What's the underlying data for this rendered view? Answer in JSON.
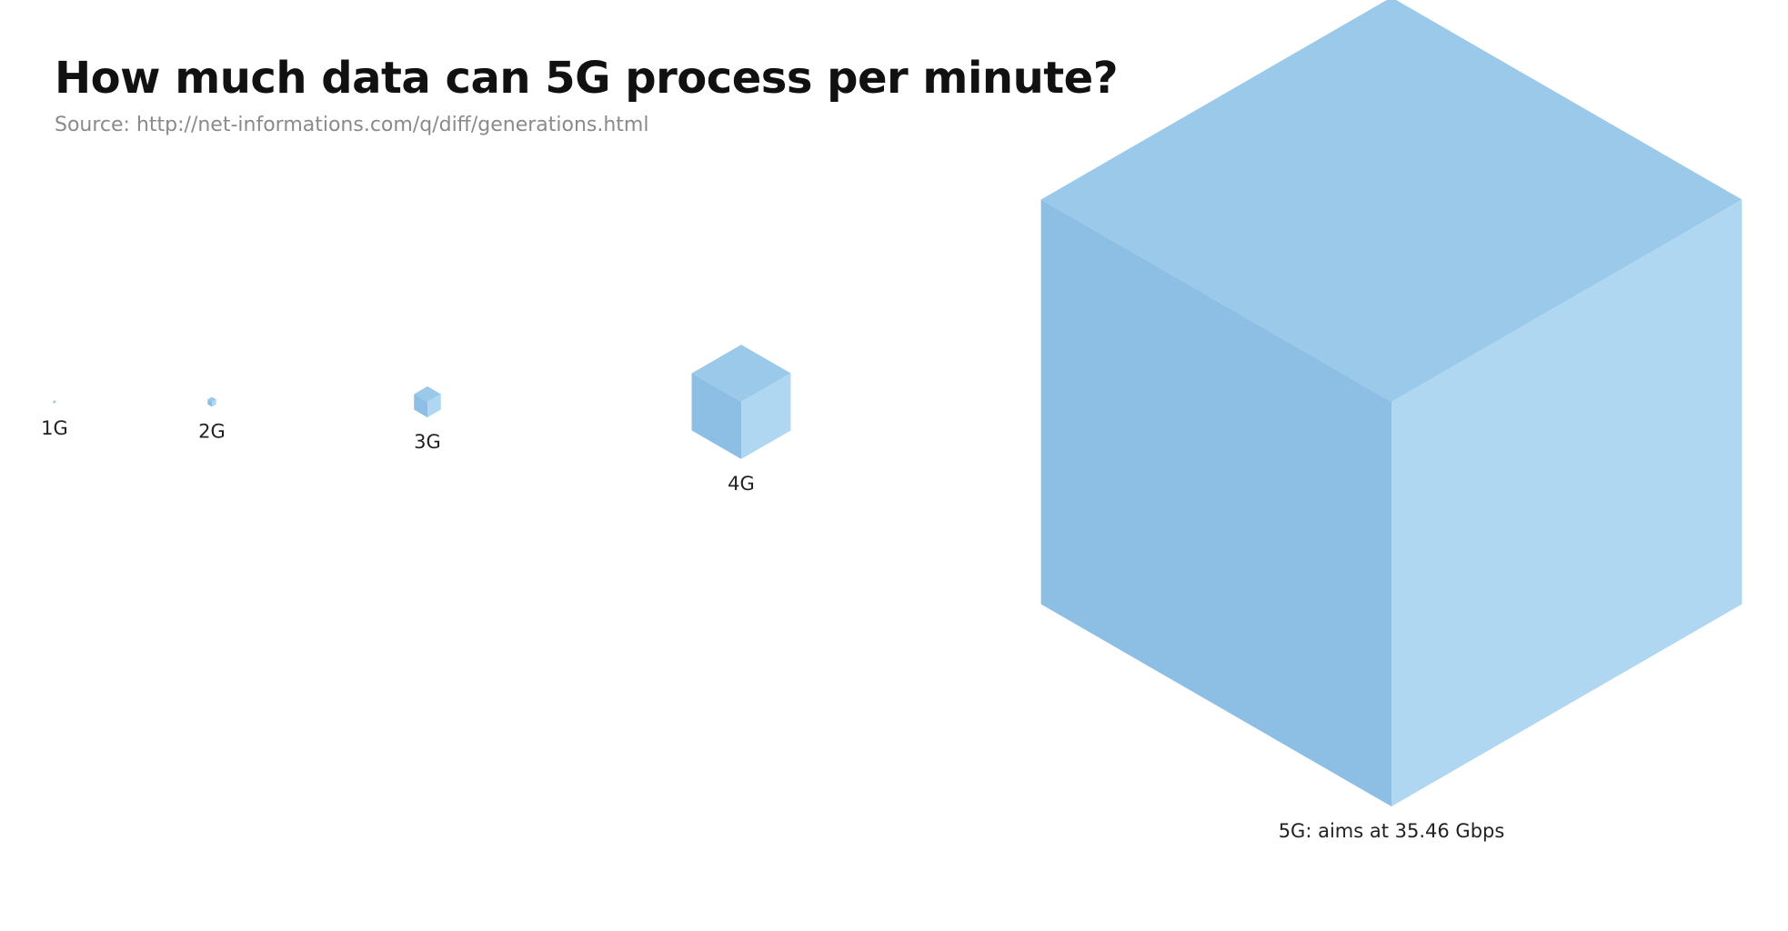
{
  "chart_data": {
    "type": "other",
    "title": "How much data can 5G process per minute?",
    "subtitle": "Source: http://net-informations.com/q/diff/generations.html",
    "series": [
      {
        "labels": [
          "1G",
          "2G",
          "3G",
          "4G",
          "5G: aims at 35.46 Gbps"
        ],
        "values": [
          2.4e-06,
          6.4e-05,
          0.002,
          0.1,
          35.46
        ]
      }
    ],
    "colors": {
      "top": "#9BC9EA",
      "left": "#8DBEE4",
      "right": "#B0D7F1"
    }
  }
}
